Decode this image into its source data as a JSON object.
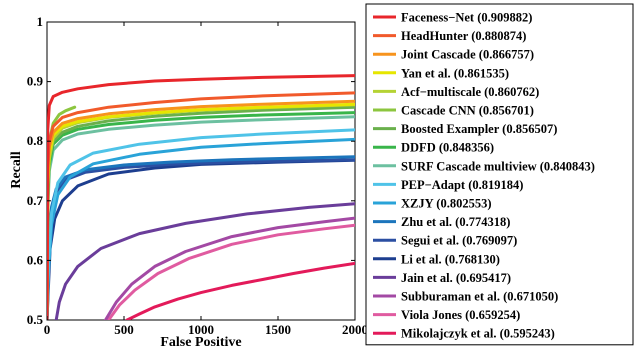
{
  "chart_data": {
    "type": "line",
    "title": "",
    "xlabel": "False Positive",
    "ylabel": "Recall",
    "xlim": [
      0,
      2000
    ],
    "ylim": [
      0.5,
      1
    ],
    "xticks": [
      "0",
      "500",
      "1000",
      "1500",
      "2000"
    ],
    "yticks": [
      "0.5",
      "0.6",
      "0.7",
      "0.8",
      "0.9",
      "1"
    ],
    "grid": false,
    "legend_position": "right-outside",
    "series": [
      {
        "name": "Faceness−Net (0.909882)",
        "color": "#e8262b",
        "x": [
          0,
          5,
          15,
          40,
          100,
          200,
          400,
          700,
          1000,
          1400,
          2000
        ],
        "y": [
          0.5,
          0.82,
          0.86,
          0.875,
          0.882,
          0.888,
          0.895,
          0.901,
          0.904,
          0.907,
          0.91
        ]
      },
      {
        "name": "HeadHunter (0.880874)",
        "color": "#f15a2b",
        "x": [
          0,
          5,
          15,
          40,
          100,
          200,
          400,
          700,
          1000,
          1400,
          2000
        ],
        "y": [
          0.5,
          0.76,
          0.8,
          0.825,
          0.84,
          0.848,
          0.857,
          0.865,
          0.871,
          0.876,
          0.881
        ]
      },
      {
        "name": "Joint Cascade (0.866757)",
        "color": "#f7941d",
        "x": [
          0,
          5,
          15,
          40,
          100,
          200,
          400,
          700,
          1000,
          1400,
          2000
        ],
        "y": [
          0.5,
          0.75,
          0.79,
          0.815,
          0.83,
          0.838,
          0.846,
          0.853,
          0.858,
          0.862,
          0.867
        ]
      },
      {
        "name": "Yan et al. (0.861535)",
        "color": "#e6e600",
        "x": [
          0,
          5,
          15,
          40,
          100,
          200,
          400,
          700,
          1000,
          1400,
          2000
        ],
        "y": [
          0.5,
          0.73,
          0.78,
          0.81,
          0.825,
          0.833,
          0.841,
          0.848,
          0.853,
          0.857,
          0.862
        ]
      },
      {
        "name": "Acf−multiscale (0.860762)",
        "color": "#b5d334",
        "x": [
          0,
          5,
          15,
          40,
          100,
          200,
          400,
          700,
          1000,
          1400,
          2000
        ],
        "y": [
          0.5,
          0.72,
          0.77,
          0.805,
          0.822,
          0.831,
          0.84,
          0.847,
          0.852,
          0.856,
          0.861
        ]
      },
      {
        "name": "Cascade CNN (0.856701)",
        "color": "#8cc63f",
        "x": [
          0,
          5,
          15,
          40,
          80,
          120,
          180
        ],
        "y": [
          0.5,
          0.75,
          0.8,
          0.83,
          0.845,
          0.851,
          0.857
        ]
      },
      {
        "name": "Boosted Exampler (0.856507)",
        "color": "#6ab04c",
        "x": [
          0,
          5,
          15,
          40,
          100,
          200,
          400,
          700,
          1000,
          1400,
          2000
        ],
        "y": [
          0.5,
          0.72,
          0.77,
          0.8,
          0.815,
          0.825,
          0.834,
          0.842,
          0.847,
          0.852,
          0.857
        ]
      },
      {
        "name": "DDFD (0.848356)",
        "color": "#39b54a",
        "x": [
          0,
          5,
          15,
          40,
          100,
          200,
          400,
          700,
          1000,
          1400,
          2000
        ],
        "y": [
          0.5,
          0.7,
          0.76,
          0.795,
          0.81,
          0.82,
          0.828,
          0.835,
          0.84,
          0.844,
          0.848
        ]
      },
      {
        "name": "SURF Cascade multiview (0.840843)",
        "color": "#6cc0a0",
        "x": [
          0,
          5,
          15,
          40,
          100,
          200,
          400,
          700,
          1000,
          1400,
          2000
        ],
        "y": [
          0.5,
          0.68,
          0.75,
          0.785,
          0.802,
          0.812,
          0.82,
          0.827,
          0.832,
          0.836,
          0.841
        ]
      },
      {
        "name": "PEP−Adapt (0.819184)",
        "color": "#4fc3e8",
        "x": [
          0,
          10,
          30,
          70,
          150,
          300,
          600,
          1000,
          1400,
          2000
        ],
        "y": [
          0.5,
          0.6,
          0.68,
          0.73,
          0.76,
          0.78,
          0.795,
          0.806,
          0.812,
          0.819
        ]
      },
      {
        "name": "XZJY (0.802553)",
        "color": "#29a3d8",
        "x": [
          0,
          10,
          30,
          70,
          150,
          300,
          600,
          1000,
          1400,
          2000
        ],
        "y": [
          0.5,
          0.58,
          0.66,
          0.71,
          0.74,
          0.762,
          0.778,
          0.79,
          0.796,
          0.803
        ]
      },
      {
        "name": "Zhu et al.  (0.774318)",
        "color": "#1c75bc",
        "x": [
          0,
          10,
          30,
          60,
          120,
          250,
          500,
          800,
          1200,
          2000
        ],
        "y": [
          0.5,
          0.63,
          0.69,
          0.72,
          0.74,
          0.752,
          0.76,
          0.765,
          0.769,
          0.774
        ]
      },
      {
        "name": "Segui et al.  (0.769097)",
        "color": "#2b4fa2",
        "x": [
          0,
          10,
          30,
          60,
          120,
          250,
          500,
          800,
          1200,
          2000
        ],
        "y": [
          0.5,
          0.62,
          0.68,
          0.715,
          0.735,
          0.748,
          0.756,
          0.761,
          0.765,
          0.769
        ]
      },
      {
        "name": "Li et al.  (0.768130)",
        "color": "#1d3e8f",
        "x": [
          0,
          20,
          50,
          100,
          200,
          400,
          700,
          1000,
          1500,
          2000
        ],
        "y": [
          0.5,
          0.62,
          0.67,
          0.7,
          0.725,
          0.745,
          0.755,
          0.761,
          0.765,
          0.768
        ]
      },
      {
        "name": "Jain et al.  (0.695417)",
        "color": "#6a3d9a",
        "x": [
          60,
          80,
          120,
          200,
          350,
          600,
          900,
          1300,
          1700,
          2000
        ],
        "y": [
          0.5,
          0.53,
          0.56,
          0.59,
          0.62,
          0.645,
          0.662,
          0.678,
          0.689,
          0.695
        ]
      },
      {
        "name": "Subburaman et al.  (0.671050)",
        "color": "#a349a4",
        "x": [
          380,
          450,
          550,
          700,
          900,
          1200,
          1500,
          1800,
          2000
        ],
        "y": [
          0.5,
          0.53,
          0.56,
          0.59,
          0.615,
          0.64,
          0.655,
          0.665,
          0.671
        ]
      },
      {
        "name": "Viola Jones  (0.659254)",
        "color": "#e05ba0",
        "x": [
          400,
          470,
          570,
          720,
          920,
          1200,
          1500,
          1800,
          2000
        ],
        "y": [
          0.5,
          0.525,
          0.55,
          0.578,
          0.603,
          0.627,
          0.643,
          0.653,
          0.659
        ]
      },
      {
        "name": "Mikolajczyk et al.  (0.595243)",
        "color": "#e31a5a",
        "x": [
          520,
          600,
          700,
          850,
          1000,
          1200,
          1400,
          1600,
          1800,
          2000
        ],
        "y": [
          0.5,
          0.51,
          0.522,
          0.535,
          0.546,
          0.558,
          0.568,
          0.578,
          0.587,
          0.595
        ]
      }
    ]
  }
}
